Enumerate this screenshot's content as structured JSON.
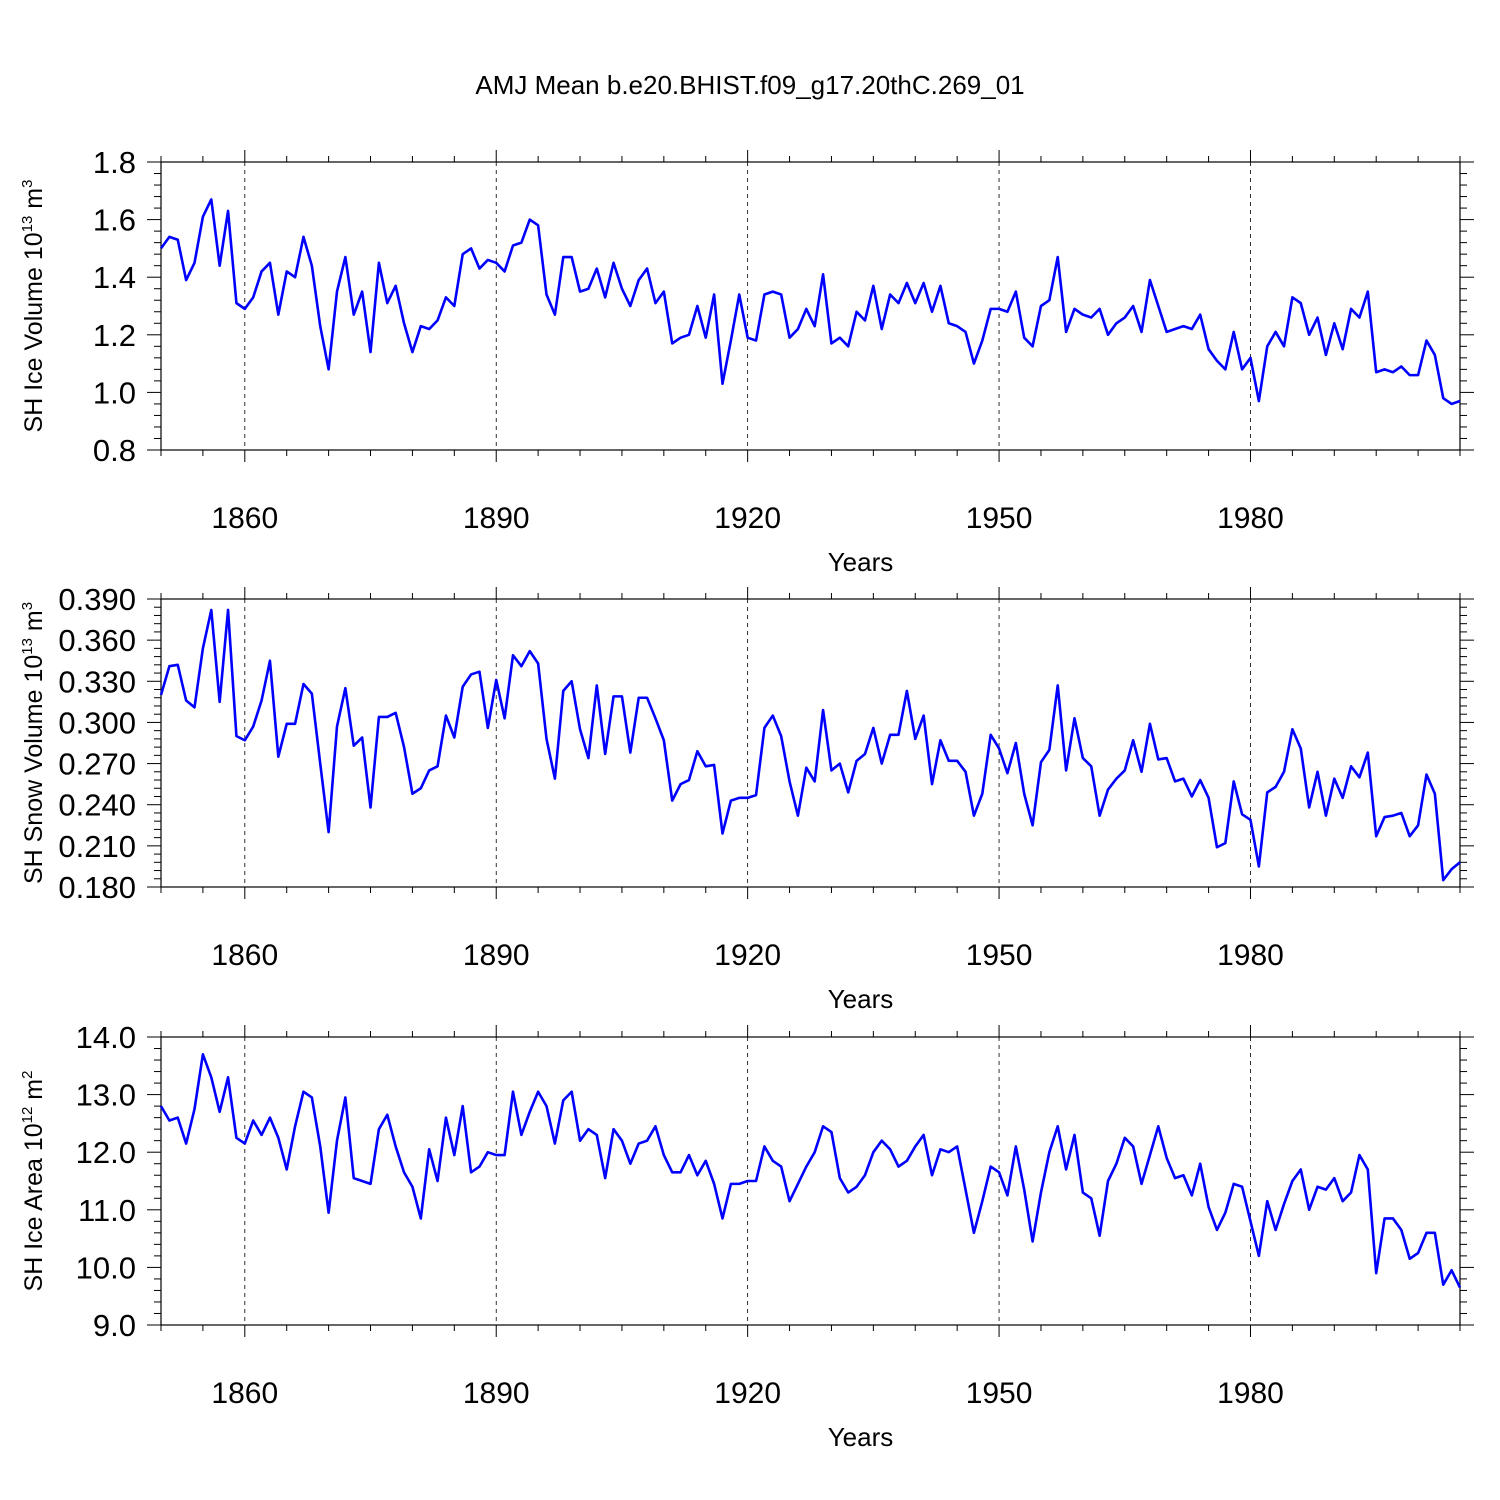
{
  "title": "AMJ Mean b.e20.BHIST.f09_g17.20thC.269_01",
  "colors": {
    "line": "#0000ff",
    "axis": "#000000",
    "grid": "#000000"
  },
  "chart_data": [
    {
      "type": "line",
      "name": "ice-volume",
      "ylabel_main": "SH Ice Volume 10",
      "ylabel_exp": "13",
      "ylabel_unit": " m",
      "ylabel_unit_exp": "3",
      "xlabel": "Years",
      "xlim": [
        1850,
        2005
      ],
      "ylim": [
        0.8,
        1.8
      ],
      "yticks": [
        0.8,
        1.0,
        1.2,
        1.4,
        1.6,
        1.8
      ],
      "ytick_labels": [
        "0.8",
        "1.0",
        "1.2",
        "1.4",
        "1.6",
        "1.8"
      ],
      "xticks": [
        1860,
        1890,
        1920,
        1950,
        1980
      ],
      "xtick_labels": [
        "1860",
        "1890",
        "1920",
        "1950",
        "1980"
      ],
      "x_start": 1850,
      "values": [
        1.5,
        1.54,
        1.53,
        1.39,
        1.45,
        1.61,
        1.67,
        1.44,
        1.63,
        1.31,
        1.29,
        1.33,
        1.42,
        1.45,
        1.27,
        1.42,
        1.4,
        1.54,
        1.44,
        1.23,
        1.08,
        1.35,
        1.47,
        1.27,
        1.35,
        1.14,
        1.45,
        1.31,
        1.37,
        1.24,
        1.14,
        1.23,
        1.22,
        1.25,
        1.33,
        1.3,
        1.48,
        1.5,
        1.43,
        1.46,
        1.45,
        1.42,
        1.51,
        1.52,
        1.6,
        1.58,
        1.34,
        1.27,
        1.47,
        1.47,
        1.35,
        1.36,
        1.43,
        1.33,
        1.45,
        1.36,
        1.3,
        1.39,
        1.43,
        1.31,
        1.35,
        1.17,
        1.19,
        1.2,
        1.3,
        1.19,
        1.34,
        1.03,
        1.18,
        1.34,
        1.19,
        1.18,
        1.34,
        1.35,
        1.34,
        1.19,
        1.22,
        1.29,
        1.23,
        1.41,
        1.17,
        1.19,
        1.16,
        1.28,
        1.25,
        1.37,
        1.22,
        1.34,
        1.31,
        1.38,
        1.31,
        1.38,
        1.28,
        1.37,
        1.24,
        1.23,
        1.21,
        1.1,
        1.18,
        1.29,
        1.29,
        1.28,
        1.35,
        1.19,
        1.16,
        1.3,
        1.32,
        1.47,
        1.21,
        1.29,
        1.27,
        1.26,
        1.29,
        1.2,
        1.24,
        1.26,
        1.3,
        1.21,
        1.39,
        1.3,
        1.21,
        1.22,
        1.23,
        1.22,
        1.27,
        1.15,
        1.11,
        1.08,
        1.21,
        1.08,
        1.12,
        0.97,
        1.16,
        1.21,
        1.16,
        1.33,
        1.31,
        1.2,
        1.26,
        1.13,
        1.24,
        1.15,
        1.29,
        1.26,
        1.35,
        1.07,
        1.08,
        1.07,
        1.09,
        1.06,
        1.06,
        1.18,
        1.13,
        0.98,
        0.96,
        0.97
      ]
    },
    {
      "type": "line",
      "name": "snow-volume",
      "ylabel_main": "SH Snow Volume 10",
      "ylabel_exp": "13",
      "ylabel_unit": " m",
      "ylabel_unit_exp": "3",
      "xlabel": "Years",
      "xlim": [
        1850,
        2005
      ],
      "ylim": [
        0.18,
        0.39
      ],
      "yticks": [
        0.18,
        0.21,
        0.24,
        0.27,
        0.3,
        0.33,
        0.36,
        0.39
      ],
      "ytick_labels": [
        "0.180",
        "0.210",
        "0.240",
        "0.270",
        "0.300",
        "0.330",
        "0.360",
        "0.390"
      ],
      "xticks": [
        1860,
        1890,
        1920,
        1950,
        1980
      ],
      "xtick_labels": [
        "1860",
        "1890",
        "1920",
        "1950",
        "1980"
      ],
      "x_start": 1850,
      "values": [
        0.32,
        0.341,
        0.342,
        0.316,
        0.311,
        0.354,
        0.382,
        0.315,
        0.382,
        0.29,
        0.287,
        0.297,
        0.316,
        0.345,
        0.275,
        0.299,
        0.299,
        0.328,
        0.321,
        0.27,
        0.22,
        0.297,
        0.325,
        0.283,
        0.289,
        0.238,
        0.304,
        0.304,
        0.307,
        0.282,
        0.248,
        0.252,
        0.265,
        0.268,
        0.305,
        0.289,
        0.326,
        0.335,
        0.337,
        0.296,
        0.331,
        0.303,
        0.349,
        0.341,
        0.352,
        0.343,
        0.288,
        0.259,
        0.323,
        0.33,
        0.295,
        0.274,
        0.327,
        0.277,
        0.319,
        0.319,
        0.278,
        0.318,
        0.318,
        0.303,
        0.287,
        0.243,
        0.255,
        0.258,
        0.279,
        0.268,
        0.269,
        0.219,
        0.243,
        0.245,
        0.245,
        0.247,
        0.296,
        0.305,
        0.29,
        0.257,
        0.232,
        0.267,
        0.257,
        0.309,
        0.265,
        0.27,
        0.249,
        0.272,
        0.277,
        0.296,
        0.27,
        0.291,
        0.291,
        0.323,
        0.288,
        0.305,
        0.255,
        0.287,
        0.272,
        0.272,
        0.264,
        0.232,
        0.248,
        0.291,
        0.281,
        0.263,
        0.285,
        0.248,
        0.225,
        0.271,
        0.28,
        0.327,
        0.265,
        0.303,
        0.274,
        0.268,
        0.232,
        0.251,
        0.259,
        0.265,
        0.287,
        0.264,
        0.299,
        0.273,
        0.274,
        0.257,
        0.259,
        0.246,
        0.258,
        0.245,
        0.209,
        0.212,
        0.257,
        0.233,
        0.229,
        0.195,
        0.249,
        0.253,
        0.264,
        0.295,
        0.281,
        0.238,
        0.264,
        0.232,
        0.259,
        0.245,
        0.268,
        0.26,
        0.278,
        0.217,
        0.231,
        0.232,
        0.234,
        0.217,
        0.225,
        0.262,
        0.248,
        0.185,
        0.193,
        0.198
      ]
    },
    {
      "type": "line",
      "name": "ice-area",
      "ylabel_main": "SH Ice Area 10",
      "ylabel_exp": "12",
      "ylabel_unit": " m",
      "ylabel_unit_exp": "2",
      "xlabel": "Years",
      "xlim": [
        1850,
        2005
      ],
      "ylim": [
        9.0,
        14.0
      ],
      "yticks": [
        9.0,
        10.0,
        11.0,
        12.0,
        13.0,
        14.0
      ],
      "ytick_labels": [
        "9.0",
        "10.0",
        "11.0",
        "12.0",
        "13.0",
        "14.0"
      ],
      "xticks": [
        1860,
        1890,
        1920,
        1950,
        1980
      ],
      "xtick_labels": [
        "1860",
        "1890",
        "1920",
        "1950",
        "1980"
      ],
      "x_start": 1850,
      "values": [
        12.8,
        12.55,
        12.6,
        12.15,
        12.75,
        13.7,
        13.3,
        12.7,
        13.3,
        12.25,
        12.15,
        12.55,
        12.3,
        12.6,
        12.25,
        11.7,
        12.45,
        13.05,
        12.95,
        12.1,
        10.95,
        12.2,
        12.95,
        11.55,
        11.5,
        11.45,
        12.4,
        12.65,
        12.1,
        11.65,
        11.4,
        10.85,
        12.05,
        11.5,
        12.6,
        11.95,
        12.8,
        11.65,
        11.75,
        12.0,
        11.95,
        11.95,
        13.05,
        12.3,
        12.7,
        13.05,
        12.8,
        12.15,
        12.9,
        13.05,
        12.2,
        12.4,
        12.3,
        11.55,
        12.4,
        12.2,
        11.8,
        12.15,
        12.2,
        12.45,
        11.95,
        11.65,
        11.65,
        11.95,
        11.6,
        11.85,
        11.45,
        10.85,
        11.45,
        11.45,
        11.5,
        11.5,
        12.1,
        11.85,
        11.75,
        11.15,
        11.45,
        11.75,
        12.0,
        12.45,
        12.35,
        11.55,
        11.3,
        11.4,
        11.6,
        12.0,
        12.2,
        12.05,
        11.75,
        11.85,
        12.1,
        12.3,
        11.6,
        12.05,
        12.0,
        12.1,
        11.35,
        10.6,
        11.15,
        11.75,
        11.65,
        11.25,
        12.1,
        11.35,
        10.45,
        11.3,
        12.0,
        12.45,
        11.7,
        12.3,
        11.3,
        11.2,
        10.55,
        11.5,
        11.8,
        12.25,
        12.1,
        11.45,
        11.95,
        12.45,
        11.9,
        11.55,
        11.6,
        11.25,
        11.8,
        11.05,
        10.65,
        10.95,
        11.45,
        11.4,
        10.8,
        10.2,
        11.15,
        10.65,
        11.1,
        11.5,
        11.7,
        11.0,
        11.4,
        11.35,
        11.55,
        11.15,
        11.3,
        11.95,
        11.7,
        9.9,
        10.85,
        10.85,
        10.65,
        10.15,
        10.25,
        10.6,
        10.6,
        9.7,
        9.95,
        9.65
      ]
    }
  ]
}
